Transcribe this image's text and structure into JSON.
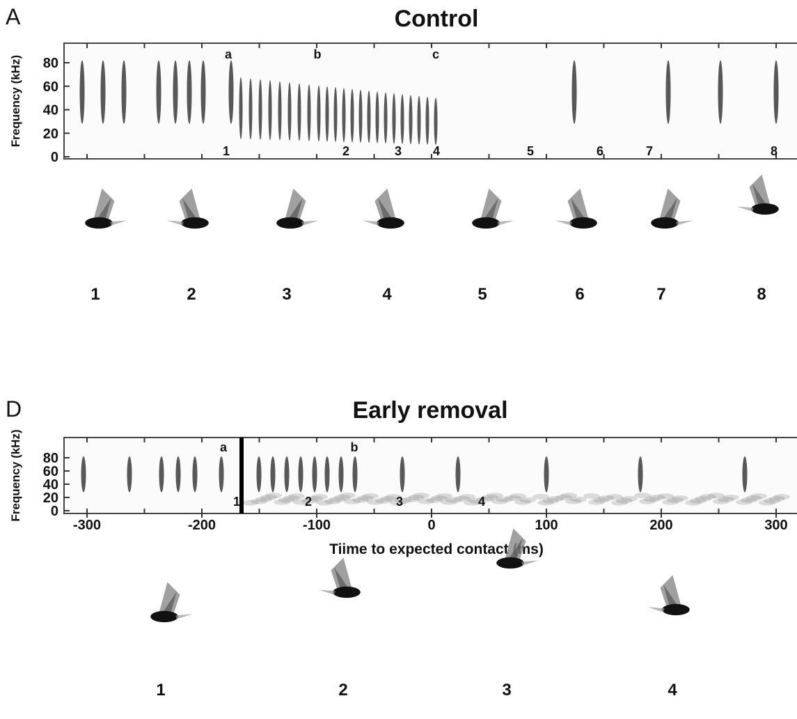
{
  "panels": [
    {
      "letter": "A",
      "title": "Control",
      "y_label": "Frequency (kHz)",
      "y_ticks": [
        0,
        20,
        40,
        60,
        80
      ],
      "call_markers": [
        "a",
        "b",
        "c"
      ],
      "positions": [
        "1",
        "2",
        "3",
        "4",
        "5",
        "6",
        "7",
        "8"
      ],
      "bat_labels": [
        "1",
        "2",
        "3",
        "4",
        "5",
        "6",
        "7",
        "8"
      ]
    },
    {
      "letter": "D",
      "title": "Early removal",
      "y_label": "Frequency (kHz)",
      "y_ticks": [
        0,
        20,
        40,
        60,
        80
      ],
      "x_ticks": [
        -300,
        -200,
        -100,
        0,
        100,
        200,
        300
      ],
      "x_label": "Tiime to expected contact (ms)",
      "call_markers": [
        "a",
        "b"
      ],
      "positions": [
        "1",
        "2",
        "3",
        "4"
      ],
      "bat_labels": [
        "1",
        "2",
        "3",
        "4"
      ]
    }
  ]
}
